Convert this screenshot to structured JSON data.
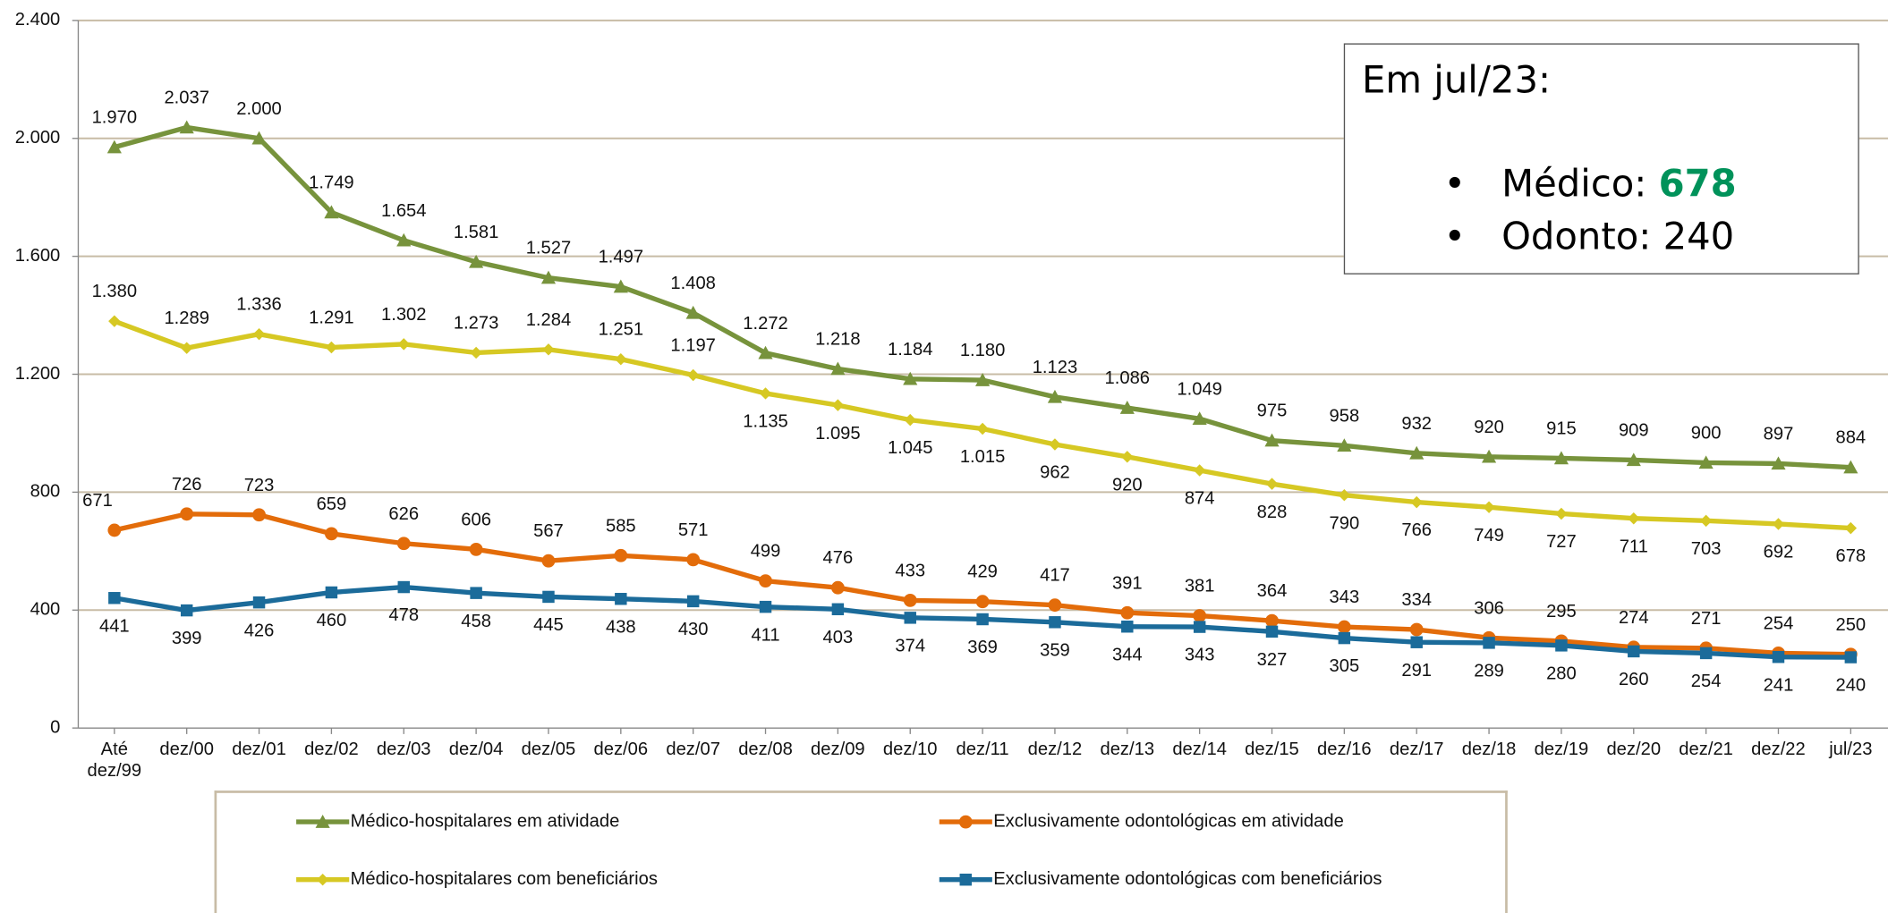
{
  "chart_data": {
    "type": "line",
    "categories": [
      "Até\ndez/99",
      "dez/00",
      "dez/01",
      "dez/02",
      "dez/03",
      "dez/04",
      "dez/05",
      "dez/06",
      "dez/07",
      "dez/08",
      "dez/09",
      "dez/10",
      "dez/11",
      "dez/12",
      "dez/13",
      "dez/14",
      "dez/15",
      "dez/16",
      "dez/17",
      "dez/18",
      "dez/19",
      "dez/20",
      "dez/21",
      "dez/22",
      "jul/23"
    ],
    "ylim": [
      0,
      2400
    ],
    "yticks": [
      0,
      400,
      800,
      {
        "value": 1200,
        "label": "1.200"
      },
      {
        "value": 1600,
        "label": "1.600"
      },
      {
        "value": 2000,
        "label": "2.000"
      },
      {
        "value": 2400,
        "label": "2.400"
      }
    ],
    "grid": true,
    "series": [
      {
        "name": "Médico-hospitalares em atividade",
        "color": "#77933c",
        "marker": "triangle",
        "values": [
          1970,
          2037,
          2000,
          1749,
          1654,
          1581,
          1527,
          1497,
          1408,
          1272,
          1218,
          1184,
          1180,
          1123,
          1086,
          1049,
          975,
          958,
          932,
          920,
          915,
          909,
          900,
          897,
          884
        ],
        "value_labels": [
          "1.970",
          "2.037",
          "2.000",
          "1.749",
          "1.654",
          "1.581",
          "1.527",
          "1.497",
          "1.408",
          "1.272",
          "1.218",
          "1.184",
          "1.180",
          "1.123",
          "1.086",
          "1.049",
          "975",
          "958",
          "932",
          "920",
          "915",
          "909",
          "900",
          "897",
          "884"
        ]
      },
      {
        "name": "Médico-hospitalares com beneficiários",
        "color": "#d6c823",
        "marker": "diamond",
        "values": [
          1380,
          1289,
          1336,
          1291,
          1302,
          1273,
          1284,
          1251,
          1197,
          1135,
          1095,
          1045,
          1015,
          962,
          920,
          874,
          828,
          790,
          766,
          749,
          727,
          711,
          703,
          692,
          678
        ],
        "value_labels": [
          "1.380",
          "1.289",
          "1.336",
          "1.291",
          "1.302",
          "1.273",
          "1.284",
          "1.251",
          "1.197",
          "1.135",
          "1.095",
          "1.045",
          "1.015",
          "962",
          "920",
          "874",
          "828",
          "790",
          "766",
          "749",
          "727",
          "711",
          "703",
          "692",
          "678"
        ]
      },
      {
        "name": "Exclusivamente odontológicas em atividade",
        "color": "#e36c0a",
        "marker": "circle",
        "values": [
          671,
          726,
          723,
          659,
          626,
          606,
          567,
          585,
          571,
          499,
          476,
          433,
          429,
          417,
          391,
          381,
          364,
          343,
          334,
          306,
          295,
          274,
          271,
          254,
          250
        ],
        "value_labels": [
          "671",
          "726",
          "723",
          "659",
          "626",
          "606",
          "567",
          "585",
          "571",
          "499",
          "476",
          "433",
          "429",
          "417",
          "391",
          "381",
          "364",
          "343",
          "334",
          "306",
          "295",
          "274",
          "271",
          "254",
          "250"
        ]
      },
      {
        "name": "Exclusivamente odontológicas com beneficiários",
        "color": "#1b6b9a",
        "marker": "square",
        "values": [
          441,
          399,
          426,
          460,
          478,
          458,
          445,
          438,
          430,
          411,
          403,
          374,
          369,
          359,
          344,
          343,
          327,
          305,
          291,
          289,
          280,
          260,
          254,
          241,
          240
        ],
        "value_labels": [
          "441",
          "399",
          "426",
          "460",
          "478",
          "458",
          "445",
          "438",
          "430",
          "411",
          "403",
          "374",
          "369",
          "359",
          "344",
          "343",
          "327",
          "305",
          "291",
          "289",
          "280",
          "260",
          "254",
          "241",
          "240"
        ]
      }
    ],
    "annotation": {
      "title": "Em jul/23:",
      "items": [
        {
          "label": "Médico:",
          "value": "678"
        },
        {
          "label": "Odonto:",
          "value": "240"
        }
      ]
    }
  }
}
